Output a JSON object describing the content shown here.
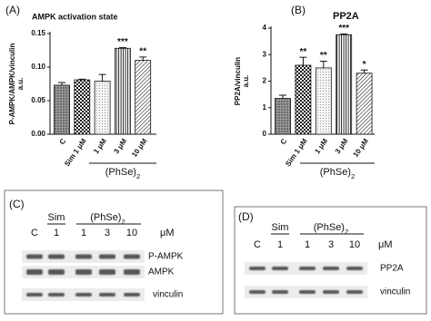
{
  "chart_data": [
    {
      "type": "bar",
      "panel_label": "(A)",
      "title": "AMPK activation state",
      "y_label": [
        "P-AMPK/AMPK/vinculin",
        "a.u."
      ],
      "categories": [
        "C",
        "Sim 1 μM",
        "1 μM",
        "3 μM",
        "10 μM"
      ],
      "values": [
        0.073,
        0.081,
        0.079,
        0.128,
        0.11
      ],
      "errors": [
        0.004,
        0.001,
        0.01,
        0.001,
        0.005
      ],
      "annotations": [
        null,
        null,
        null,
        "***",
        "**"
      ],
      "patterns": [
        "dots",
        "checker",
        "fine",
        "vertical",
        "diagonal"
      ],
      "group_label": {
        "text": "(PhSe)",
        "subscript": "2"
      },
      "ylim": [
        0,
        0.15
      ],
      "yticks": [
        {
          "value": 0,
          "label": "0.00"
        },
        {
          "value": 0.05,
          "label": "0.05"
        },
        {
          "value": 0.1,
          "label": "0.10"
        },
        {
          "value": 0.15,
          "label": "0.15"
        }
      ]
    },
    {
      "type": "bar",
      "panel_label": "(B)",
      "title": "PP2A",
      "y_label": [
        "PP2A/vinculin",
        "a.u."
      ],
      "categories": [
        "C",
        "Sim 1 μM",
        "1 μM",
        "3 μM",
        "10 μM"
      ],
      "values": [
        1.35,
        2.6,
        2.5,
        3.75,
        2.3
      ],
      "errors": [
        0.12,
        0.3,
        0.25,
        0.03,
        0.12
      ],
      "annotations": [
        null,
        "**",
        "**",
        "***",
        "*"
      ],
      "patterns": [
        "dots",
        "checker",
        "fine",
        "vertical",
        "diagonal"
      ],
      "group_label": {
        "text": "(PhSe)",
        "subscript": "2"
      },
      "ylim": [
        0,
        4
      ],
      "yticks": [
        0,
        1,
        2,
        3,
        4
      ]
    }
  ],
  "blots": [
    {
      "panel_label": "(C)",
      "sim": "Sim",
      "group_label": {
        "text": "(PhSe)",
        "subscript": "2"
      },
      "lanes": [
        "C",
        "1",
        "1",
        "3",
        "10"
      ],
      "unit": "μM",
      "rows": [
        "P-AMPK",
        "AMPK",
        "vinculin"
      ]
    },
    {
      "panel_label": "(D)",
      "sim": "Sim",
      "group_label": {
        "text": "(PhSe)",
        "subscript": "2"
      },
      "lanes": [
        "C",
        "1",
        "1",
        "3",
        "10"
      ],
      "unit": "μM",
      "rows": [
        "PP2A",
        "vinculin"
      ]
    }
  ]
}
